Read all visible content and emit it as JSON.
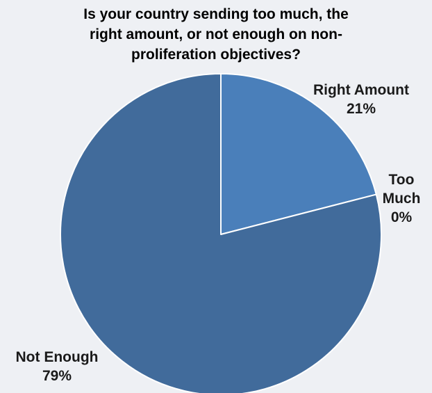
{
  "colors": {
    "background": "#eef0f4",
    "text": "#1a1a1a",
    "slice_border": "#ffffff",
    "right_amount": "#4a7fba",
    "not_enough": "#416b9b",
    "too_much": "#5a88c0"
  },
  "chart_data": {
    "type": "pie",
    "title_lines": [
      "Is your country sending too much, the",
      "right amount, or not enough on non-",
      "proliferation objectives?"
    ],
    "slices": [
      {
        "label": "Right Amount",
        "label_lines": [
          "Right Amount"
        ],
        "percent_label": "21%",
        "value": 21,
        "color": "#4a7fba"
      },
      {
        "label": "Too Much",
        "label_lines": [
          "Too",
          "Much"
        ],
        "percent_label": "0%",
        "value": 0,
        "color": "#5a88c0"
      },
      {
        "label": "Not Enough",
        "label_lines": [
          "Not Enough"
        ],
        "percent_label": "79%",
        "value": 79,
        "color": "#416b9b"
      }
    ],
    "start_angle_deg": 0,
    "direction": "clockwise",
    "legend": "none",
    "labels": "outside"
  }
}
